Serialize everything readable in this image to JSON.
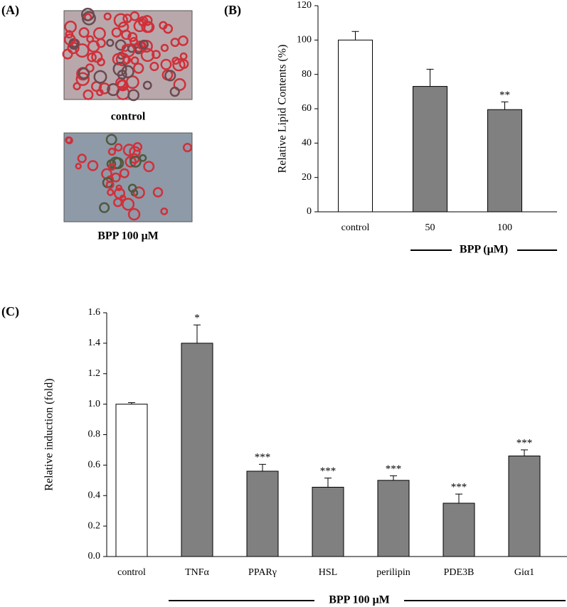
{
  "panels": {
    "a": "(A)",
    "b": "(B)",
    "c": "(C)"
  },
  "images": [
    {
      "caption": "control"
    },
    {
      "caption": "BPP 100 μM"
    }
  ],
  "chart_data": [
    {
      "type": "bar",
      "y_label": "Relative Lipid Contents (%)",
      "group_label": "BPP (μM)",
      "categories": [
        "control",
        "50",
        "100"
      ],
      "values": [
        100,
        73,
        59.5
      ],
      "errors": [
        5,
        10,
        4.5
      ],
      "annotations": [
        null,
        null,
        "**"
      ],
      "colors": [
        "#ffffff",
        "#808080",
        "#808080"
      ],
      "ylim": [
        0,
        120
      ],
      "yticks": [
        0,
        20,
        40,
        60,
        80,
        100,
        120
      ]
    },
    {
      "type": "bar",
      "y_label": "Relative induction (fold)",
      "group_label": "BPP 100 μM",
      "categories": [
        "control",
        "TNFα",
        "PPARγ",
        "HSL",
        "perilipin",
        "PDE3B",
        "Giα1"
      ],
      "values": [
        1.0,
        1.4,
        0.56,
        0.455,
        0.5,
        0.35,
        0.66
      ],
      "errors": [
        0.01,
        0.12,
        0.045,
        0.06,
        0.03,
        0.06,
        0.04
      ],
      "annotations": [
        null,
        "*",
        "***",
        "***",
        "***",
        "***",
        "***"
      ],
      "colors": [
        "#ffffff",
        "#808080",
        "#808080",
        "#808080",
        "#808080",
        "#808080",
        "#808080"
      ],
      "ylim": [
        0,
        1.6
      ],
      "yticks": [
        {
          "value": 0,
          "label": "0.0"
        },
        {
          "value": 0.2,
          "label": "0.2"
        },
        {
          "value": 0.4,
          "label": "0.4"
        },
        {
          "value": 0.6,
          "label": "0.6"
        },
        {
          "value": 0.8,
          "label": "0.8"
        },
        {
          "value": 1,
          "label": "1.0"
        },
        {
          "value": 1.2,
          "label": "1.2"
        },
        {
          "value": 1.4,
          "label": "1.4"
        },
        {
          "value": 1.6,
          "label": "1.6"
        }
      ]
    }
  ]
}
